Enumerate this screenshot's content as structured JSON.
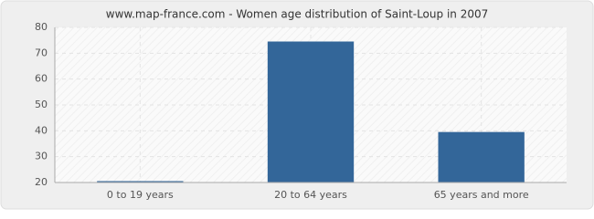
{
  "chart_data": {
    "type": "bar",
    "title": "www.map-france.com - Women age distribution of Saint-Loup in 2007",
    "categories": [
      "0 to 19 years",
      "20 to 64 years",
      "65 years and more"
    ],
    "values": [
      20,
      74,
      39
    ],
    "color": "#336699",
    "ylim": [
      20,
      80
    ],
    "yticks": [
      20,
      30,
      40,
      50,
      60,
      70,
      80
    ],
    "grid": true
  }
}
